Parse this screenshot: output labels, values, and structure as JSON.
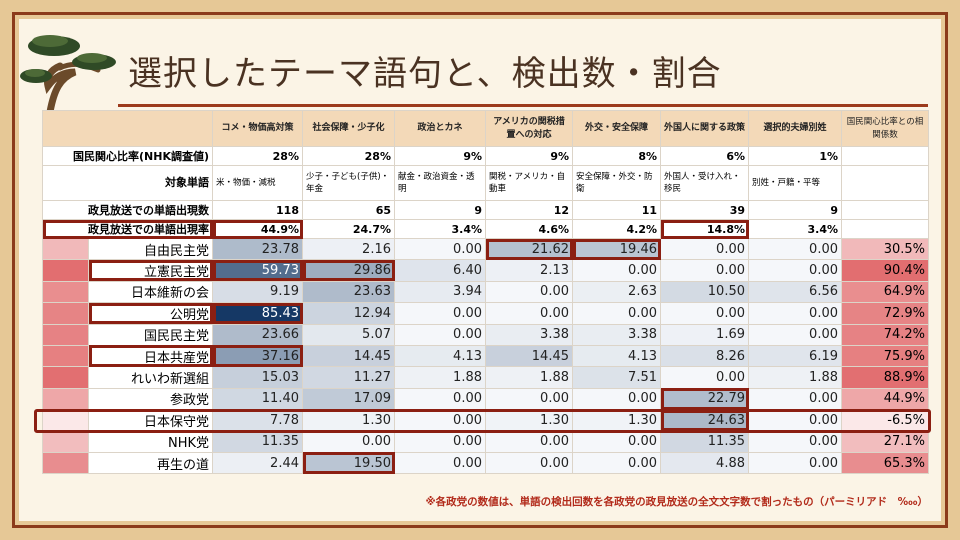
{
  "title": "選択したテーマ語句と、検出数・割合",
  "columns": [
    "コメ・物価高対策",
    "社会保障・少子化",
    "政治とカネ",
    "アメリカの関税措置への対応",
    "外交・安全保障",
    "外国人に関する政策",
    "選択的夫婦別姓",
    "国民関心比率との相関係数"
  ],
  "header_rows": [
    {
      "label": "国民関心比率(NHK調査値)",
      "values": [
        "28%",
        "28%",
        "9%",
        "9%",
        "8%",
        "6%",
        "1%",
        ""
      ]
    },
    {
      "label": "対象単語",
      "values": [
        "米・物価・減税",
        "少子・子ども(子供)・年金",
        "献金・政治資金・透明",
        "関税・アメリカ・自動車",
        "安全保障・外交・防衛",
        "外国人・受け入れ・移民",
        "別姓・戸籍・平等",
        ""
      ]
    },
    {
      "label": "政見放送での単語出現数",
      "values": [
        "118",
        "65",
        "9",
        "12",
        "11",
        "39",
        "9",
        ""
      ]
    },
    {
      "label": "政見放送での単語出現率",
      "values": [
        "44.9%",
        "24.7%",
        "3.4%",
        "4.6%",
        "4.2%",
        "14.8%",
        "3.4%",
        ""
      ]
    }
  ],
  "parties": [
    {
      "name": "自由民主党",
      "values": [
        "23.78",
        "2.16",
        "0.00",
        "21.62",
        "19.46",
        "0.00",
        "0.00"
      ],
      "corr": "30.5%"
    },
    {
      "name": "立憲民主党",
      "values": [
        "59.73",
        "29.86",
        "6.40",
        "2.13",
        "0.00",
        "0.00",
        "0.00"
      ],
      "corr": "90.4%"
    },
    {
      "name": "日本維新の会",
      "values": [
        "9.19",
        "23.63",
        "3.94",
        "0.00",
        "2.63",
        "10.50",
        "6.56"
      ],
      "corr": "64.9%"
    },
    {
      "name": "公明党",
      "values": [
        "85.43",
        "12.94",
        "0.00",
        "0.00",
        "0.00",
        "0.00",
        "0.00"
      ],
      "corr": "72.9%"
    },
    {
      "name": "国民民主党",
      "values": [
        "23.66",
        "5.07",
        "0.00",
        "3.38",
        "3.38",
        "1.69",
        "0.00"
      ],
      "corr": "74.2%"
    },
    {
      "name": "日本共産党",
      "values": [
        "37.16",
        "14.45",
        "4.13",
        "14.45",
        "4.13",
        "8.26",
        "6.19"
      ],
      "corr": "75.9%"
    },
    {
      "name": "れいわ新選組",
      "values": [
        "15.03",
        "11.27",
        "1.88",
        "1.88",
        "7.51",
        "0.00",
        "1.88"
      ],
      "corr": "88.9%"
    },
    {
      "name": "参政党",
      "values": [
        "11.40",
        "17.09",
        "0.00",
        "0.00",
        "0.00",
        "22.79",
        "0.00"
      ],
      "corr": "44.9%"
    },
    {
      "name": "日本保守党",
      "values": [
        "7.78",
        "1.30",
        "0.00",
        "1.30",
        "1.30",
        "24.63",
        "0.00"
      ],
      "corr": "-6.5%"
    },
    {
      "name": "NHK党",
      "values": [
        "11.35",
        "0.00",
        "0.00",
        "0.00",
        "0.00",
        "11.35",
        "0.00"
      ],
      "corr": "27.1%"
    },
    {
      "name": "再生の道",
      "values": [
        "2.44",
        "19.50",
        "0.00",
        "0.00",
        "0.00",
        "4.88",
        "0.00"
      ],
      "corr": "65.3%"
    }
  ],
  "highlighted_cells": [
    [
      1,
      0
    ],
    [
      1,
      1
    ],
    [
      3,
      0
    ],
    [
      5,
      0
    ],
    [
      0,
      3
    ],
    [
      0,
      4
    ],
    [
      7,
      5
    ],
    [
      8,
      5
    ],
    [
      10,
      1
    ]
  ],
  "highlighted_header_cells": [
    0,
    5
  ],
  "highlighted_row": 8,
  "colors": {
    "frame": "#8b3a1a",
    "box": "#8b1f12",
    "header_bg": "#f3d9b8",
    "note": "#b22a1a"
  },
  "note": "※各政党の数値は、単語の検出回数を各政党の政見放送の全文文字数で割ったもの（パーミリアド　‱）"
}
